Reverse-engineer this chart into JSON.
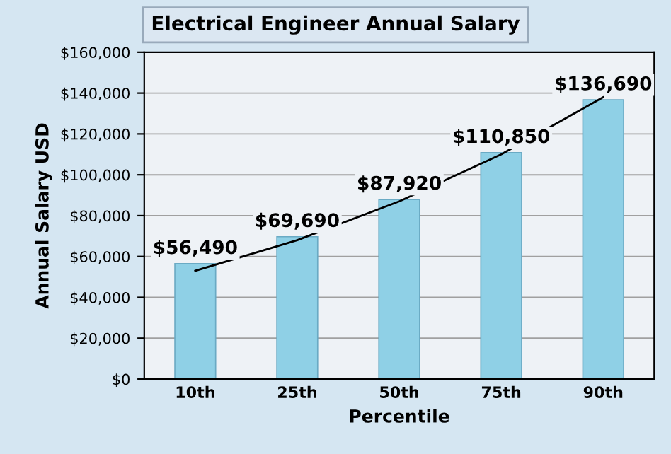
{
  "chart_data": {
    "type": "bar",
    "title": "Electrical Engineer Annual Salary",
    "xlabel": "Percentile",
    "ylabel": "Annual Salary USD",
    "categories": [
      "10th",
      "25th",
      "50th",
      "75th",
      "90th"
    ],
    "series": [
      {
        "color": "#8fd0e6",
        "values": [
          56490,
          69690,
          87920,
          110850,
          136690
        ],
        "value_labels": [
          "$56,490",
          "$69,690",
          "$87,920",
          "$110,850",
          "$136,690"
        ]
      },
      {
        "type": "line",
        "color": "#000000",
        "values": [
          53000,
          68000,
          87000,
          110000,
          138000
        ]
      }
    ],
    "ylim": [
      0,
      160000
    ],
    "yticks": [
      {
        "value": 0,
        "label": "$0"
      },
      {
        "value": 20000,
        "label": "$20,000"
      },
      {
        "value": 40000,
        "label": "$40,000"
      },
      {
        "value": 60000,
        "label": "$60,000"
      },
      {
        "value": 80000,
        "label": "$80,000"
      },
      {
        "value": 100000,
        "label": "$100,000"
      },
      {
        "value": 120000,
        "label": "$120,000"
      },
      {
        "value": 140000,
        "label": "$140,000"
      },
      {
        "value": 160000,
        "label": "$160,000"
      }
    ],
    "grid": "y",
    "legend": false
  }
}
